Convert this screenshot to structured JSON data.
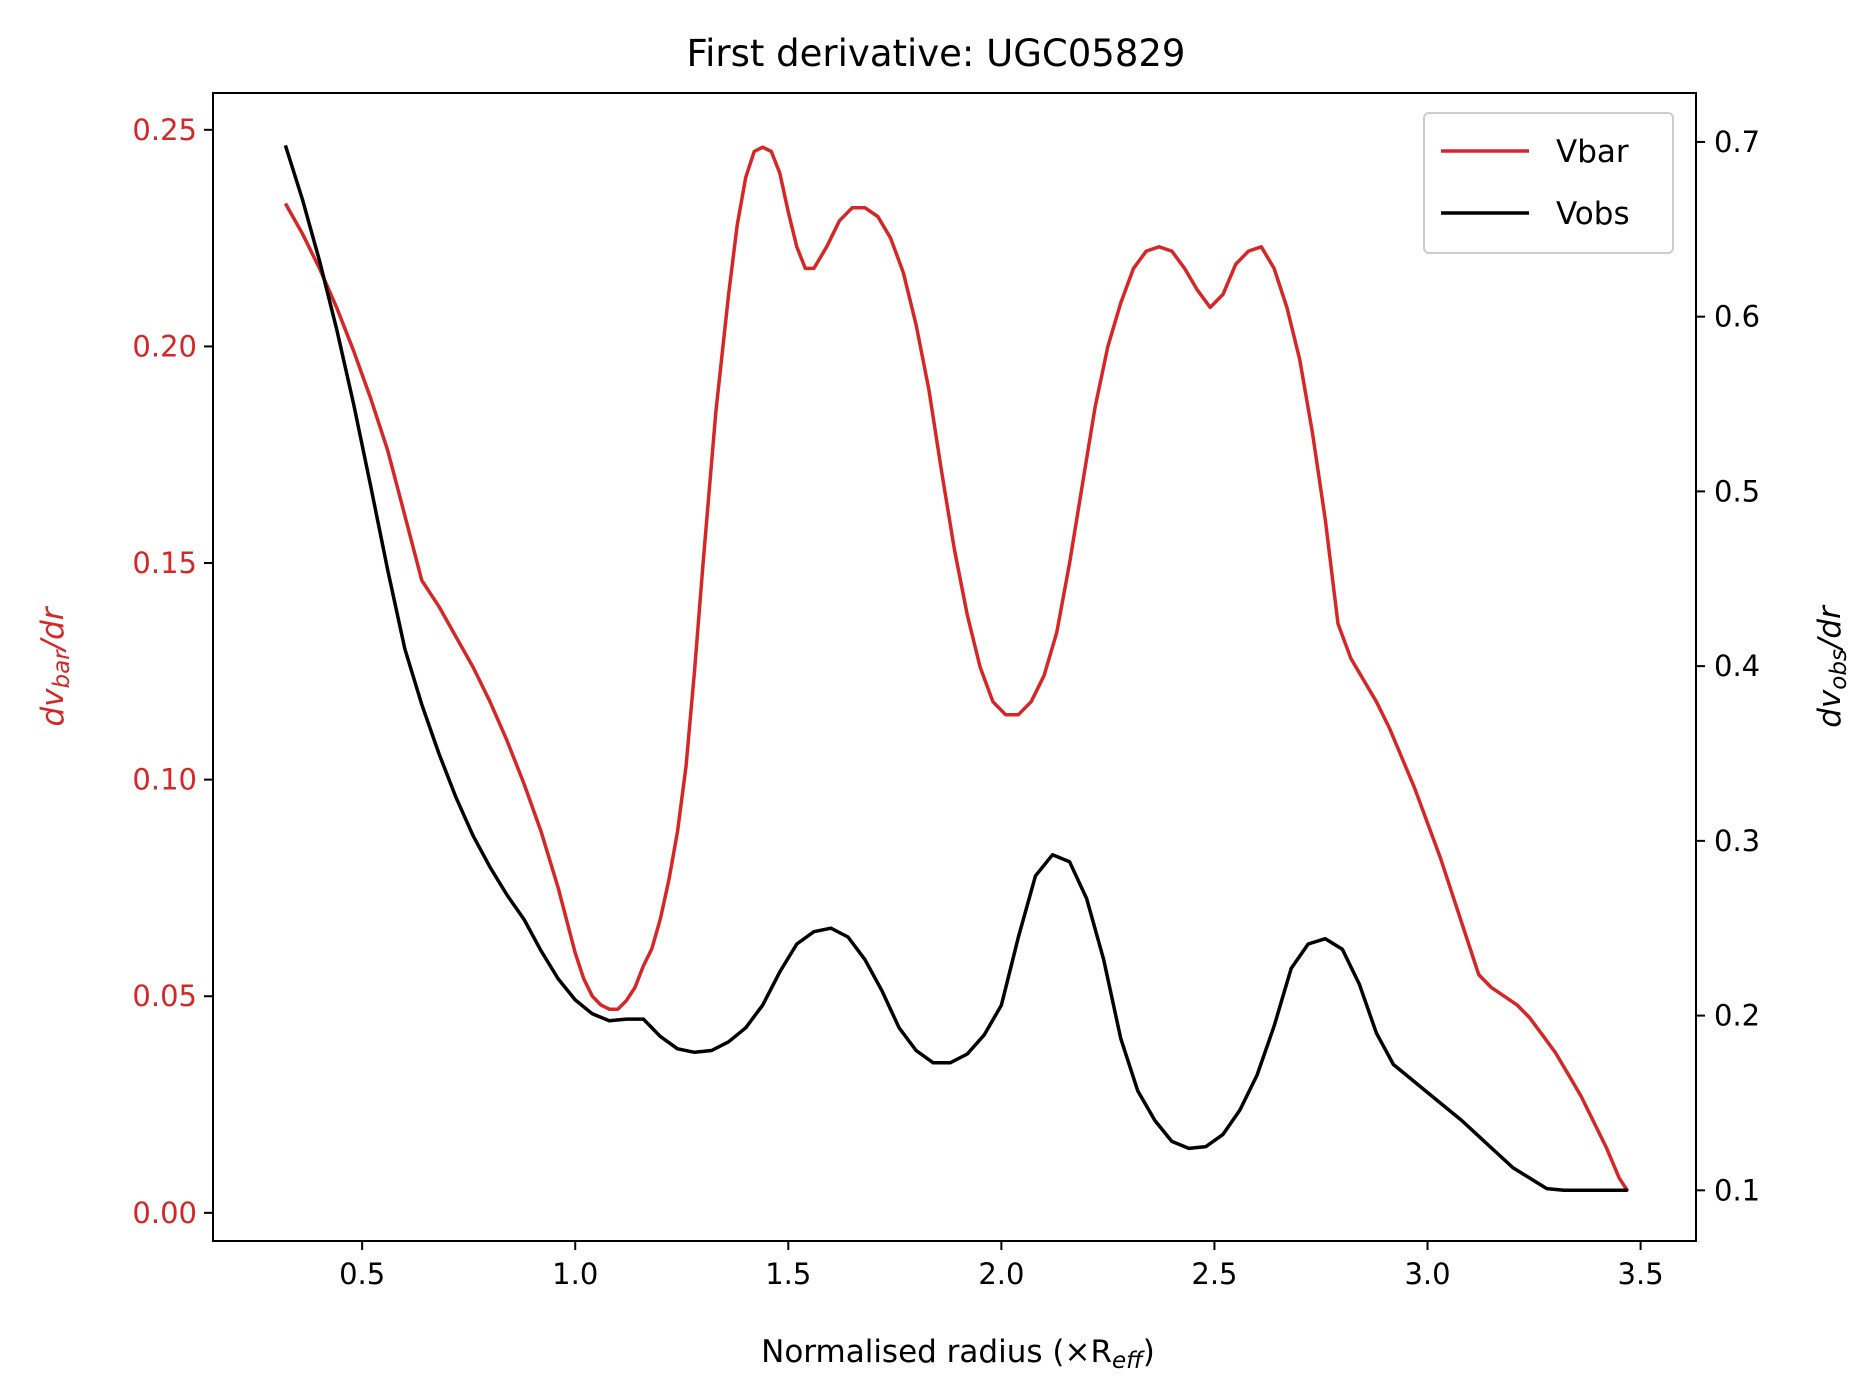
{
  "chart_data": {
    "type": "line",
    "title": "First derivative: UGC05829",
    "xlabel": "Normalised radius (×R",
    "xlabel_sub": "eff",
    "xlabel_suffix": ")",
    "ylabel_left": "dv",
    "ylabel_left_sub": "bar",
    "ylabel_left_suffix": "/dr",
    "ylabel_right": "dv",
    "ylabel_right_sub": "obs",
    "ylabel_right_suffix": "/dr",
    "xlim": [
      0.15,
      3.63
    ],
    "ylim_left": [
      -0.0065,
      0.2585
    ],
    "ylim_right": [
      0.071,
      0.728
    ],
    "x_ticks": [
      "0.5",
      "1.0",
      "1.5",
      "2.0",
      "2.5",
      "3.0",
      "3.5"
    ],
    "y_left_ticks": [
      "0.00",
      "0.05",
      "0.10",
      "0.15",
      "0.20",
      "0.25"
    ],
    "y_right_ticks": [
      "0.1",
      "0.2",
      "0.3",
      "0.4",
      "0.5",
      "0.6",
      "0.7"
    ],
    "grid": false,
    "legend_position": "top-right",
    "colors": {
      "vbar": "#d62728",
      "vobs": "#000000",
      "left_axis": "#d62728",
      "right_axis": "#000000"
    },
    "series": [
      {
        "name": "Vbar",
        "axis": "left",
        "x": [
          0.32,
          0.36,
          0.4,
          0.44,
          0.48,
          0.52,
          0.56,
          0.6,
          0.64,
          0.68,
          0.72,
          0.76,
          0.8,
          0.84,
          0.88,
          0.92,
          0.96,
          1.0,
          1.02,
          1.04,
          1.06,
          1.08,
          1.1,
          1.12,
          1.14,
          1.16,
          1.18,
          1.2,
          1.22,
          1.24,
          1.26,
          1.28,
          1.3,
          1.33,
          1.36,
          1.38,
          1.4,
          1.42,
          1.44,
          1.46,
          1.48,
          1.5,
          1.52,
          1.54,
          1.56,
          1.59,
          1.62,
          1.65,
          1.68,
          1.71,
          1.74,
          1.77,
          1.8,
          1.83,
          1.86,
          1.89,
          1.92,
          1.95,
          1.98,
          2.01,
          2.04,
          2.07,
          2.1,
          2.13,
          2.16,
          2.19,
          2.22,
          2.25,
          2.28,
          2.31,
          2.34,
          2.37,
          2.4,
          2.43,
          2.46,
          2.49,
          2.52,
          2.55,
          2.58,
          2.61,
          2.64,
          2.67,
          2.7,
          2.73,
          2.76,
          2.79,
          2.82,
          2.85,
          2.88,
          2.91,
          2.94,
          2.97,
          3.0,
          3.03,
          3.06,
          3.09,
          3.12,
          3.15,
          3.18,
          3.21,
          3.24,
          3.27,
          3.3,
          3.33,
          3.36,
          3.39,
          3.42,
          3.45,
          3.47
        ],
        "y": [
          0.233,
          0.226,
          0.218,
          0.209,
          0.199,
          0.188,
          0.176,
          0.161,
          0.146,
          0.14,
          0.133,
          0.126,
          0.118,
          0.109,
          0.099,
          0.088,
          0.075,
          0.06,
          0.054,
          0.05,
          0.048,
          0.047,
          0.047,
          0.049,
          0.052,
          0.057,
          0.061,
          0.068,
          0.077,
          0.088,
          0.103,
          0.125,
          0.15,
          0.185,
          0.212,
          0.228,
          0.239,
          0.245,
          0.246,
          0.245,
          0.24,
          0.231,
          0.223,
          0.218,
          0.218,
          0.223,
          0.229,
          0.232,
          0.232,
          0.23,
          0.225,
          0.217,
          0.205,
          0.19,
          0.171,
          0.153,
          0.138,
          0.126,
          0.118,
          0.115,
          0.115,
          0.118,
          0.124,
          0.134,
          0.15,
          0.168,
          0.186,
          0.2,
          0.21,
          0.218,
          0.222,
          0.223,
          0.222,
          0.218,
          0.213,
          0.209,
          0.212,
          0.219,
          0.222,
          0.223,
          0.218,
          0.209,
          0.197,
          0.18,
          0.16,
          0.136,
          0.128,
          0.123,
          0.118,
          0.112,
          0.105,
          0.098,
          0.09,
          0.082,
          0.073,
          0.064,
          0.055,
          0.052,
          0.05,
          0.048,
          0.045,
          0.041,
          0.037,
          0.032,
          0.027,
          0.021,
          0.015,
          0.008,
          0.005
        ]
      },
      {
        "name": "Vobs",
        "axis": "right",
        "x": [
          0.32,
          0.36,
          0.4,
          0.44,
          0.48,
          0.52,
          0.56,
          0.6,
          0.64,
          0.68,
          0.72,
          0.76,
          0.8,
          0.84,
          0.88,
          0.92,
          0.96,
          1.0,
          1.04,
          1.08,
          1.12,
          1.16,
          1.2,
          1.24,
          1.28,
          1.32,
          1.36,
          1.4,
          1.44,
          1.48,
          1.52,
          1.56,
          1.6,
          1.64,
          1.68,
          1.72,
          1.76,
          1.8,
          1.84,
          1.88,
          1.92,
          1.96,
          2.0,
          2.04,
          2.08,
          2.12,
          2.16,
          2.2,
          2.24,
          2.28,
          2.32,
          2.36,
          2.4,
          2.44,
          2.48,
          2.52,
          2.56,
          2.6,
          2.64,
          2.68,
          2.72,
          2.76,
          2.8,
          2.84,
          2.88,
          2.92,
          2.96,
          3.0,
          3.04,
          3.08,
          3.12,
          3.16,
          3.2,
          3.24,
          3.28,
          3.32,
          3.36,
          3.4,
          3.44,
          3.47
        ],
        "y": [
          0.698,
          0.667,
          0.632,
          0.593,
          0.55,
          0.503,
          0.455,
          0.41,
          0.378,
          0.35,
          0.325,
          0.303,
          0.285,
          0.269,
          0.255,
          0.237,
          0.221,
          0.209,
          0.201,
          0.197,
          0.198,
          0.198,
          0.188,
          0.181,
          0.179,
          0.18,
          0.185,
          0.193,
          0.206,
          0.225,
          0.241,
          0.248,
          0.25,
          0.245,
          0.232,
          0.214,
          0.193,
          0.18,
          0.173,
          0.173,
          0.178,
          0.189,
          0.206,
          0.245,
          0.28,
          0.292,
          0.288,
          0.267,
          0.232,
          0.187,
          0.157,
          0.14,
          0.128,
          0.124,
          0.125,
          0.132,
          0.146,
          0.166,
          0.194,
          0.227,
          0.241,
          0.244,
          0.238,
          0.218,
          0.19,
          0.172,
          0.164,
          0.156,
          0.148,
          0.14,
          0.131,
          0.122,
          0.113,
          0.107,
          0.101,
          0.1,
          0.1,
          0.1,
          0.1,
          0.1
        ]
      }
    ]
  }
}
